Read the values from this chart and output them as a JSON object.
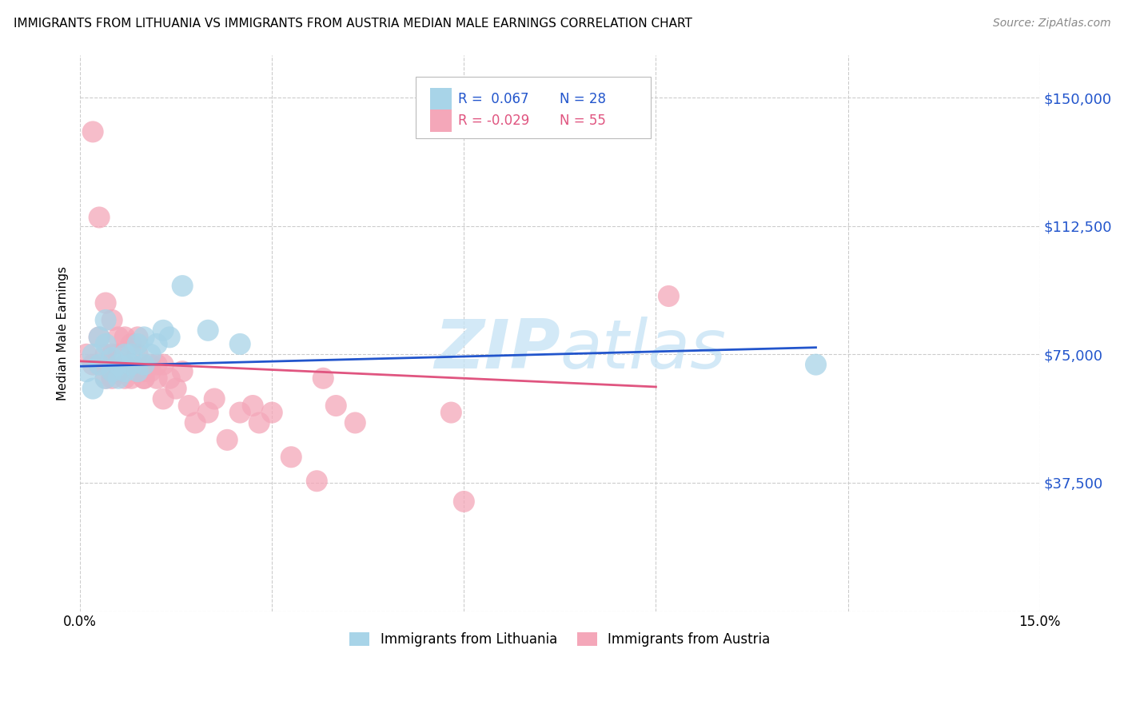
{
  "title": "IMMIGRANTS FROM LITHUANIA VS IMMIGRANTS FROM AUSTRIA MEDIAN MALE EARNINGS CORRELATION CHART",
  "source": "Source: ZipAtlas.com",
  "ylabel": "Median Male Earnings",
  "xlim": [
    0.0,
    0.15
  ],
  "ylim": [
    0,
    162500
  ],
  "yticks": [
    0,
    37500,
    75000,
    112500,
    150000
  ],
  "ytick_labels": [
    "",
    "$37,500",
    "$75,000",
    "$112,500",
    "$150,000"
  ],
  "xticks": [
    0.0,
    0.03,
    0.06,
    0.09,
    0.12,
    0.15
  ],
  "xtick_labels": [
    "0.0%",
    "",
    "",
    "",
    "",
    "15.0%"
  ],
  "color_lithuania": "#A8D4E8",
  "color_austria": "#F4A7B9",
  "line_color_lithuania": "#2255CC",
  "line_color_austria": "#E05580",
  "watermark_color": "#C8E4F5",
  "background_color": "#FFFFFF",
  "grid_color": "#CCCCCC",
  "lithuania_x": [
    0.001,
    0.002,
    0.002,
    0.003,
    0.003,
    0.004,
    0.004,
    0.004,
    0.005,
    0.005,
    0.006,
    0.006,
    0.007,
    0.007,
    0.008,
    0.008,
    0.009,
    0.009,
    0.01,
    0.01,
    0.011,
    0.012,
    0.013,
    0.014,
    0.016,
    0.02,
    0.025,
    0.115
  ],
  "lithuania_y": [
    70000,
    75000,
    65000,
    80000,
    72000,
    68000,
    78000,
    85000,
    74000,
    70000,
    68000,
    72000,
    75000,
    70000,
    75000,
    72000,
    78000,
    70000,
    80000,
    72000,
    75000,
    78000,
    82000,
    80000,
    95000,
    82000,
    78000,
    72000
  ],
  "austria_x": [
    0.001,
    0.002,
    0.002,
    0.003,
    0.003,
    0.003,
    0.004,
    0.004,
    0.004,
    0.005,
    0.005,
    0.005,
    0.005,
    0.006,
    0.006,
    0.006,
    0.007,
    0.007,
    0.007,
    0.008,
    0.008,
    0.008,
    0.009,
    0.009,
    0.009,
    0.01,
    0.01,
    0.01,
    0.01,
    0.011,
    0.011,
    0.012,
    0.012,
    0.013,
    0.013,
    0.014,
    0.015,
    0.016,
    0.017,
    0.018,
    0.02,
    0.021,
    0.023,
    0.025,
    0.027,
    0.028,
    0.03,
    0.033,
    0.037,
    0.038,
    0.04,
    0.043,
    0.058,
    0.06,
    0.092
  ],
  "austria_y": [
    75000,
    140000,
    72000,
    115000,
    80000,
    72000,
    90000,
    68000,
    75000,
    85000,
    68000,
    75000,
    70000,
    80000,
    75000,
    70000,
    72000,
    68000,
    80000,
    78000,
    72000,
    68000,
    80000,
    70000,
    75000,
    68000,
    72000,
    70000,
    68000,
    72000,
    70000,
    68000,
    72000,
    62000,
    72000,
    68000,
    65000,
    70000,
    60000,
    55000,
    58000,
    62000,
    50000,
    58000,
    60000,
    55000,
    58000,
    45000,
    38000,
    68000,
    60000,
    55000,
    58000,
    32000,
    92000
  ]
}
